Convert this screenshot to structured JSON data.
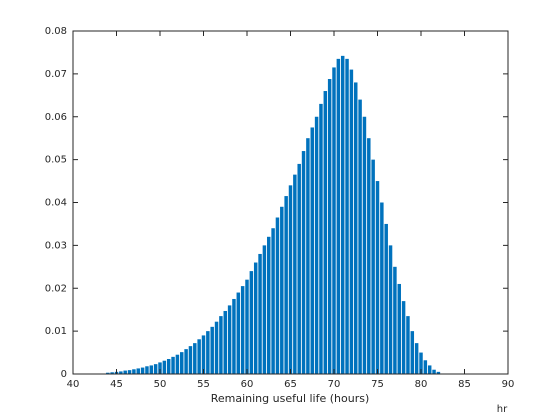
{
  "chart_data": {
    "type": "bar",
    "xlabel": "Remaining useful life (hours)",
    "annotation": "hr",
    "color": "#0072bd",
    "x": [
      44,
      44.5,
      45,
      45.5,
      46,
      46.5,
      47,
      47.5,
      48,
      48.5,
      49,
      49.5,
      50,
      50.5,
      51,
      51.5,
      52,
      52.5,
      53,
      53.5,
      54,
      54.5,
      55,
      55.5,
      56,
      56.5,
      57,
      57.5,
      58,
      58.5,
      59,
      59.5,
      60,
      60.5,
      61,
      61.5,
      62,
      62.5,
      63,
      63.5,
      64,
      64.5,
      65,
      65.5,
      66,
      66.5,
      67,
      67.5,
      68,
      68.5,
      69,
      69.5,
      70,
      70.5,
      71,
      71.5,
      72,
      72.5,
      73,
      73.5,
      74,
      74.5,
      75,
      75.5,
      76,
      76.5,
      77,
      77.5,
      78,
      78.5,
      79,
      79.5,
      80,
      80.5,
      81,
      81.5,
      82
    ],
    "values": [
      0.0003,
      0.0004,
      0.0005,
      0.0006,
      0.0008,
      0.0009,
      0.0011,
      0.0013,
      0.0015,
      0.0018,
      0.002,
      0.0023,
      0.0027,
      0.0031,
      0.0035,
      0.004,
      0.0045,
      0.0051,
      0.0058,
      0.0065,
      0.0072,
      0.0081,
      0.009,
      0.01,
      0.011,
      0.0122,
      0.0135,
      0.0147,
      0.016,
      0.0175,
      0.019,
      0.0205,
      0.022,
      0.024,
      0.026,
      0.028,
      0.03,
      0.032,
      0.034,
      0.0365,
      0.039,
      0.0415,
      0.044,
      0.0465,
      0.049,
      0.052,
      0.055,
      0.0575,
      0.06,
      0.063,
      0.066,
      0.0688,
      0.0715,
      0.0735,
      0.0742,
      0.0735,
      0.071,
      0.068,
      0.064,
      0.06,
      0.055,
      0.05,
      0.045,
      0.04,
      0.035,
      0.03,
      0.025,
      0.021,
      0.017,
      0.0135,
      0.01,
      0.0072,
      0.005,
      0.0032,
      0.002,
      0.001,
      0.0005
    ],
    "xlim": [
      40,
      90
    ],
    "xticks": [
      40,
      45,
      50,
      55,
      60,
      65,
      70,
      75,
      80,
      85,
      90
    ],
    "ylim": [
      0,
      0.08
    ],
    "yticks": [
      0,
      0.01,
      0.02,
      0.03,
      0.04,
      0.05,
      0.06,
      0.07,
      0.08
    ],
    "grid": false
  }
}
